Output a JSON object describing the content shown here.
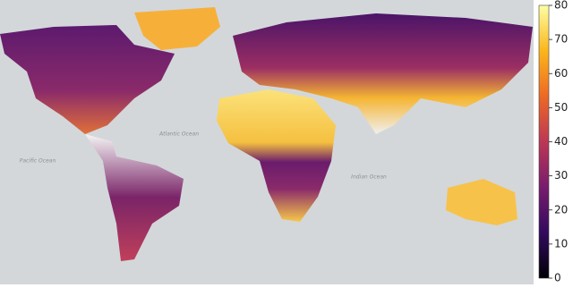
{
  "colorbar": {
    "colormap": "inferno",
    "range": [
      0,
      80
    ],
    "ticks": [
      0,
      10,
      20,
      30,
      40,
      50,
      60,
      70,
      80
    ]
  },
  "ocean_labels": [
    "Pacific Ocean",
    "Atlantic Ocean",
    "Indian Ocean"
  ]
}
